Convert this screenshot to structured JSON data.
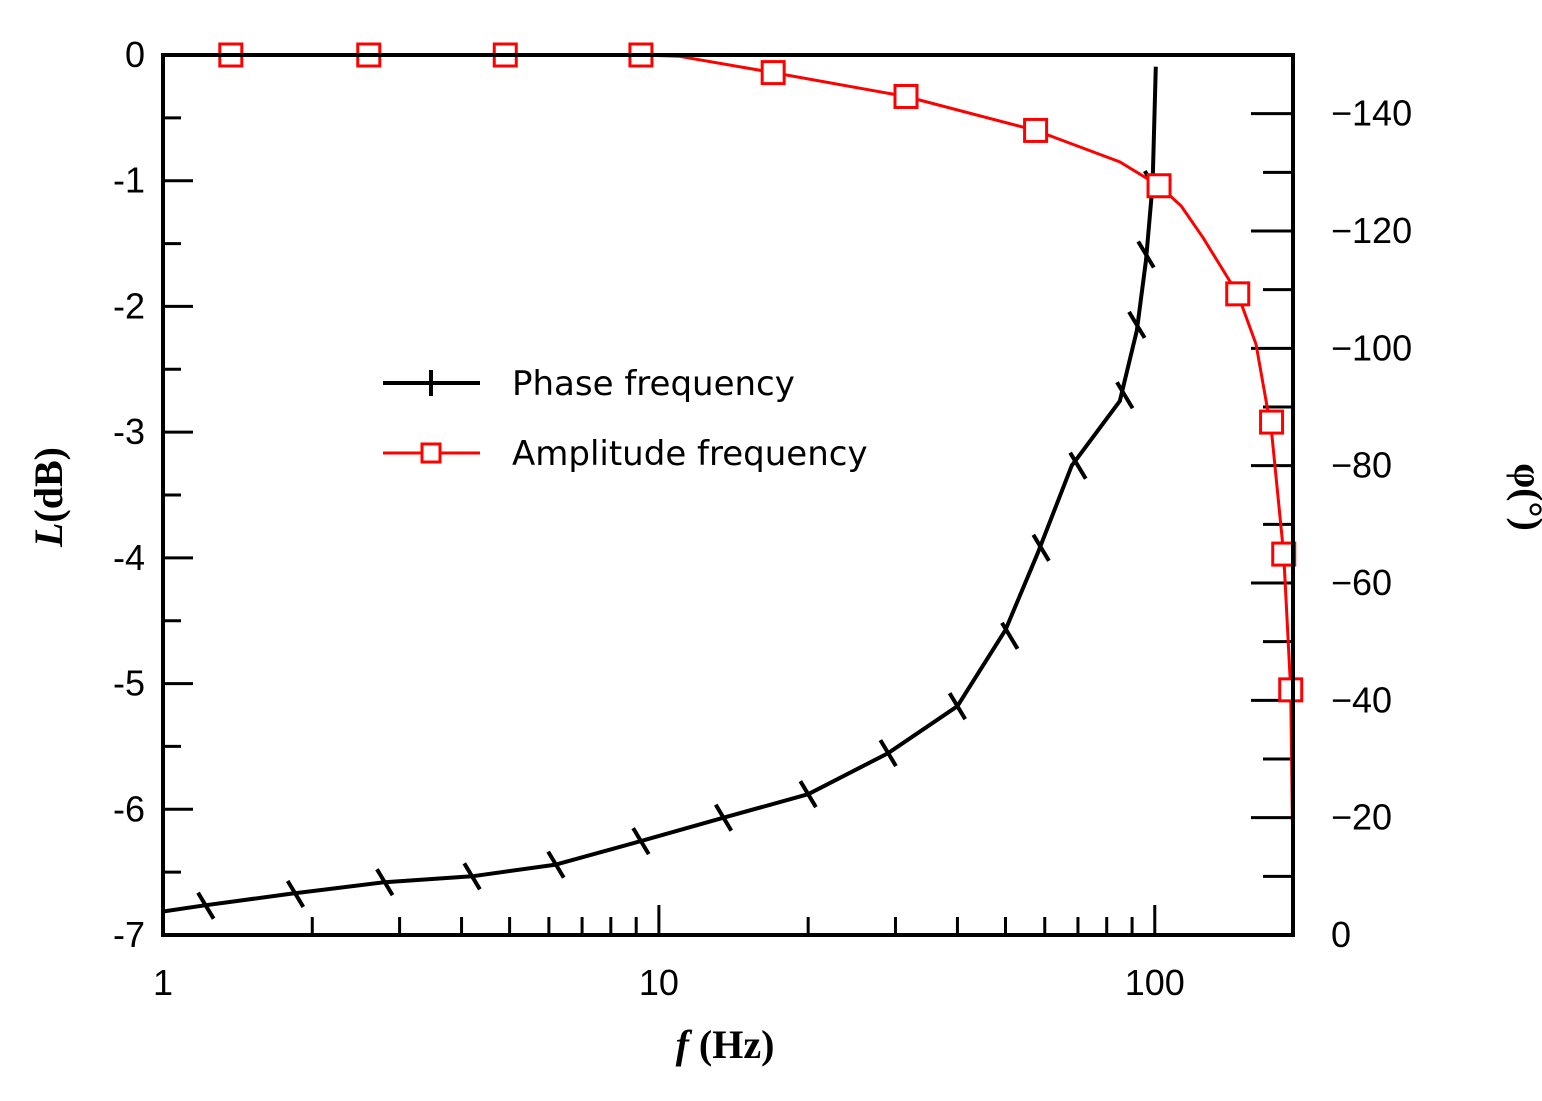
{
  "chart_data": {
    "type": "line",
    "x_scale": "log",
    "xlim": [
      1,
      190
    ],
    "xlabel_var": "f",
    "xlabel_unit": " (Hz)",
    "x_ticks": [
      1,
      10,
      100
    ],
    "x_tick_labels": [
      "1",
      "10",
      "100"
    ],
    "left_axis": {
      "label_var": "L",
      "label_unit": "(dB)",
      "ylim": [
        -7,
        0
      ],
      "ticks": [
        0,
        -1,
        -2,
        -3,
        -4,
        -5,
        -6,
        -7
      ],
      "tick_labels": [
        "0",
        "-1",
        "-2",
        "-3",
        "-4",
        "-5",
        "-6",
        "-7"
      ]
    },
    "right_axis": {
      "label": "φ(°)",
      "ylim": [
        0,
        -150
      ],
      "ticks": [
        -140,
        -120,
        -100,
        -80,
        -60,
        -40,
        -20,
        0
      ],
      "tick_labels": [
        "−140",
        "−120",
        "−100",
        "−80",
        "−60",
        "−40",
        "−20",
        "0"
      ]
    },
    "legend_position": "center-left",
    "series": [
      {
        "name": "Phase frequency",
        "axis": "right",
        "color": "#000000",
        "marker": "plus",
        "x": [
          1,
          1.2,
          1.8,
          2.8,
          4.2,
          6.2,
          9.2,
          13.5,
          20,
          29,
          40,
          50,
          58,
          68,
          85,
          92,
          96,
          99,
          100.5
        ],
        "y": [
          -4,
          -5,
          -7,
          -9,
          -10,
          -12,
          -16,
          -20,
          -24,
          -31,
          -39,
          -52,
          -65,
          -80,
          -91,
          -103,
          -115,
          -128,
          -148
        ],
        "marker_x": [
          1.22,
          1.85,
          2.8,
          4.2,
          6.2,
          9.2,
          13.5,
          20,
          29,
          40,
          51,
          59,
          70,
          87,
          92,
          96,
          99
        ],
        "marker_y": [
          -5,
          -7,
          -9,
          -10,
          -12,
          -16,
          -20,
          -24,
          -31,
          -39,
          -51,
          -66,
          -80,
          -92,
          -104,
          -116,
          -128
        ]
      },
      {
        "name": "Amplitude frequency",
        "axis": "left",
        "color": "#ff0000",
        "marker": "square",
        "x": [
          1,
          1.37,
          2.6,
          4.9,
          9.2,
          11,
          17,
          31.5,
          57.5,
          85,
          102,
          113,
          125,
          147,
          160,
          172,
          182,
          188,
          189.5
        ],
        "y": [
          0,
          0,
          0,
          0,
          0,
          -0.01,
          -0.14,
          -0.33,
          -0.6,
          -0.85,
          -1.04,
          -1.2,
          -1.45,
          -1.9,
          -2.3,
          -3.0,
          -3.97,
          -5.05,
          -6.1
        ],
        "marker_x": [
          1.37,
          2.6,
          4.9,
          9.2,
          17,
          31.5,
          57.5,
          102,
          147,
          172,
          182,
          188
        ],
        "marker_y": [
          0,
          0,
          0,
          0,
          -0.14,
          -0.33,
          -0.6,
          -1.04,
          -1.9,
          -2.92,
          -3.97,
          -5.05
        ]
      }
    ]
  }
}
